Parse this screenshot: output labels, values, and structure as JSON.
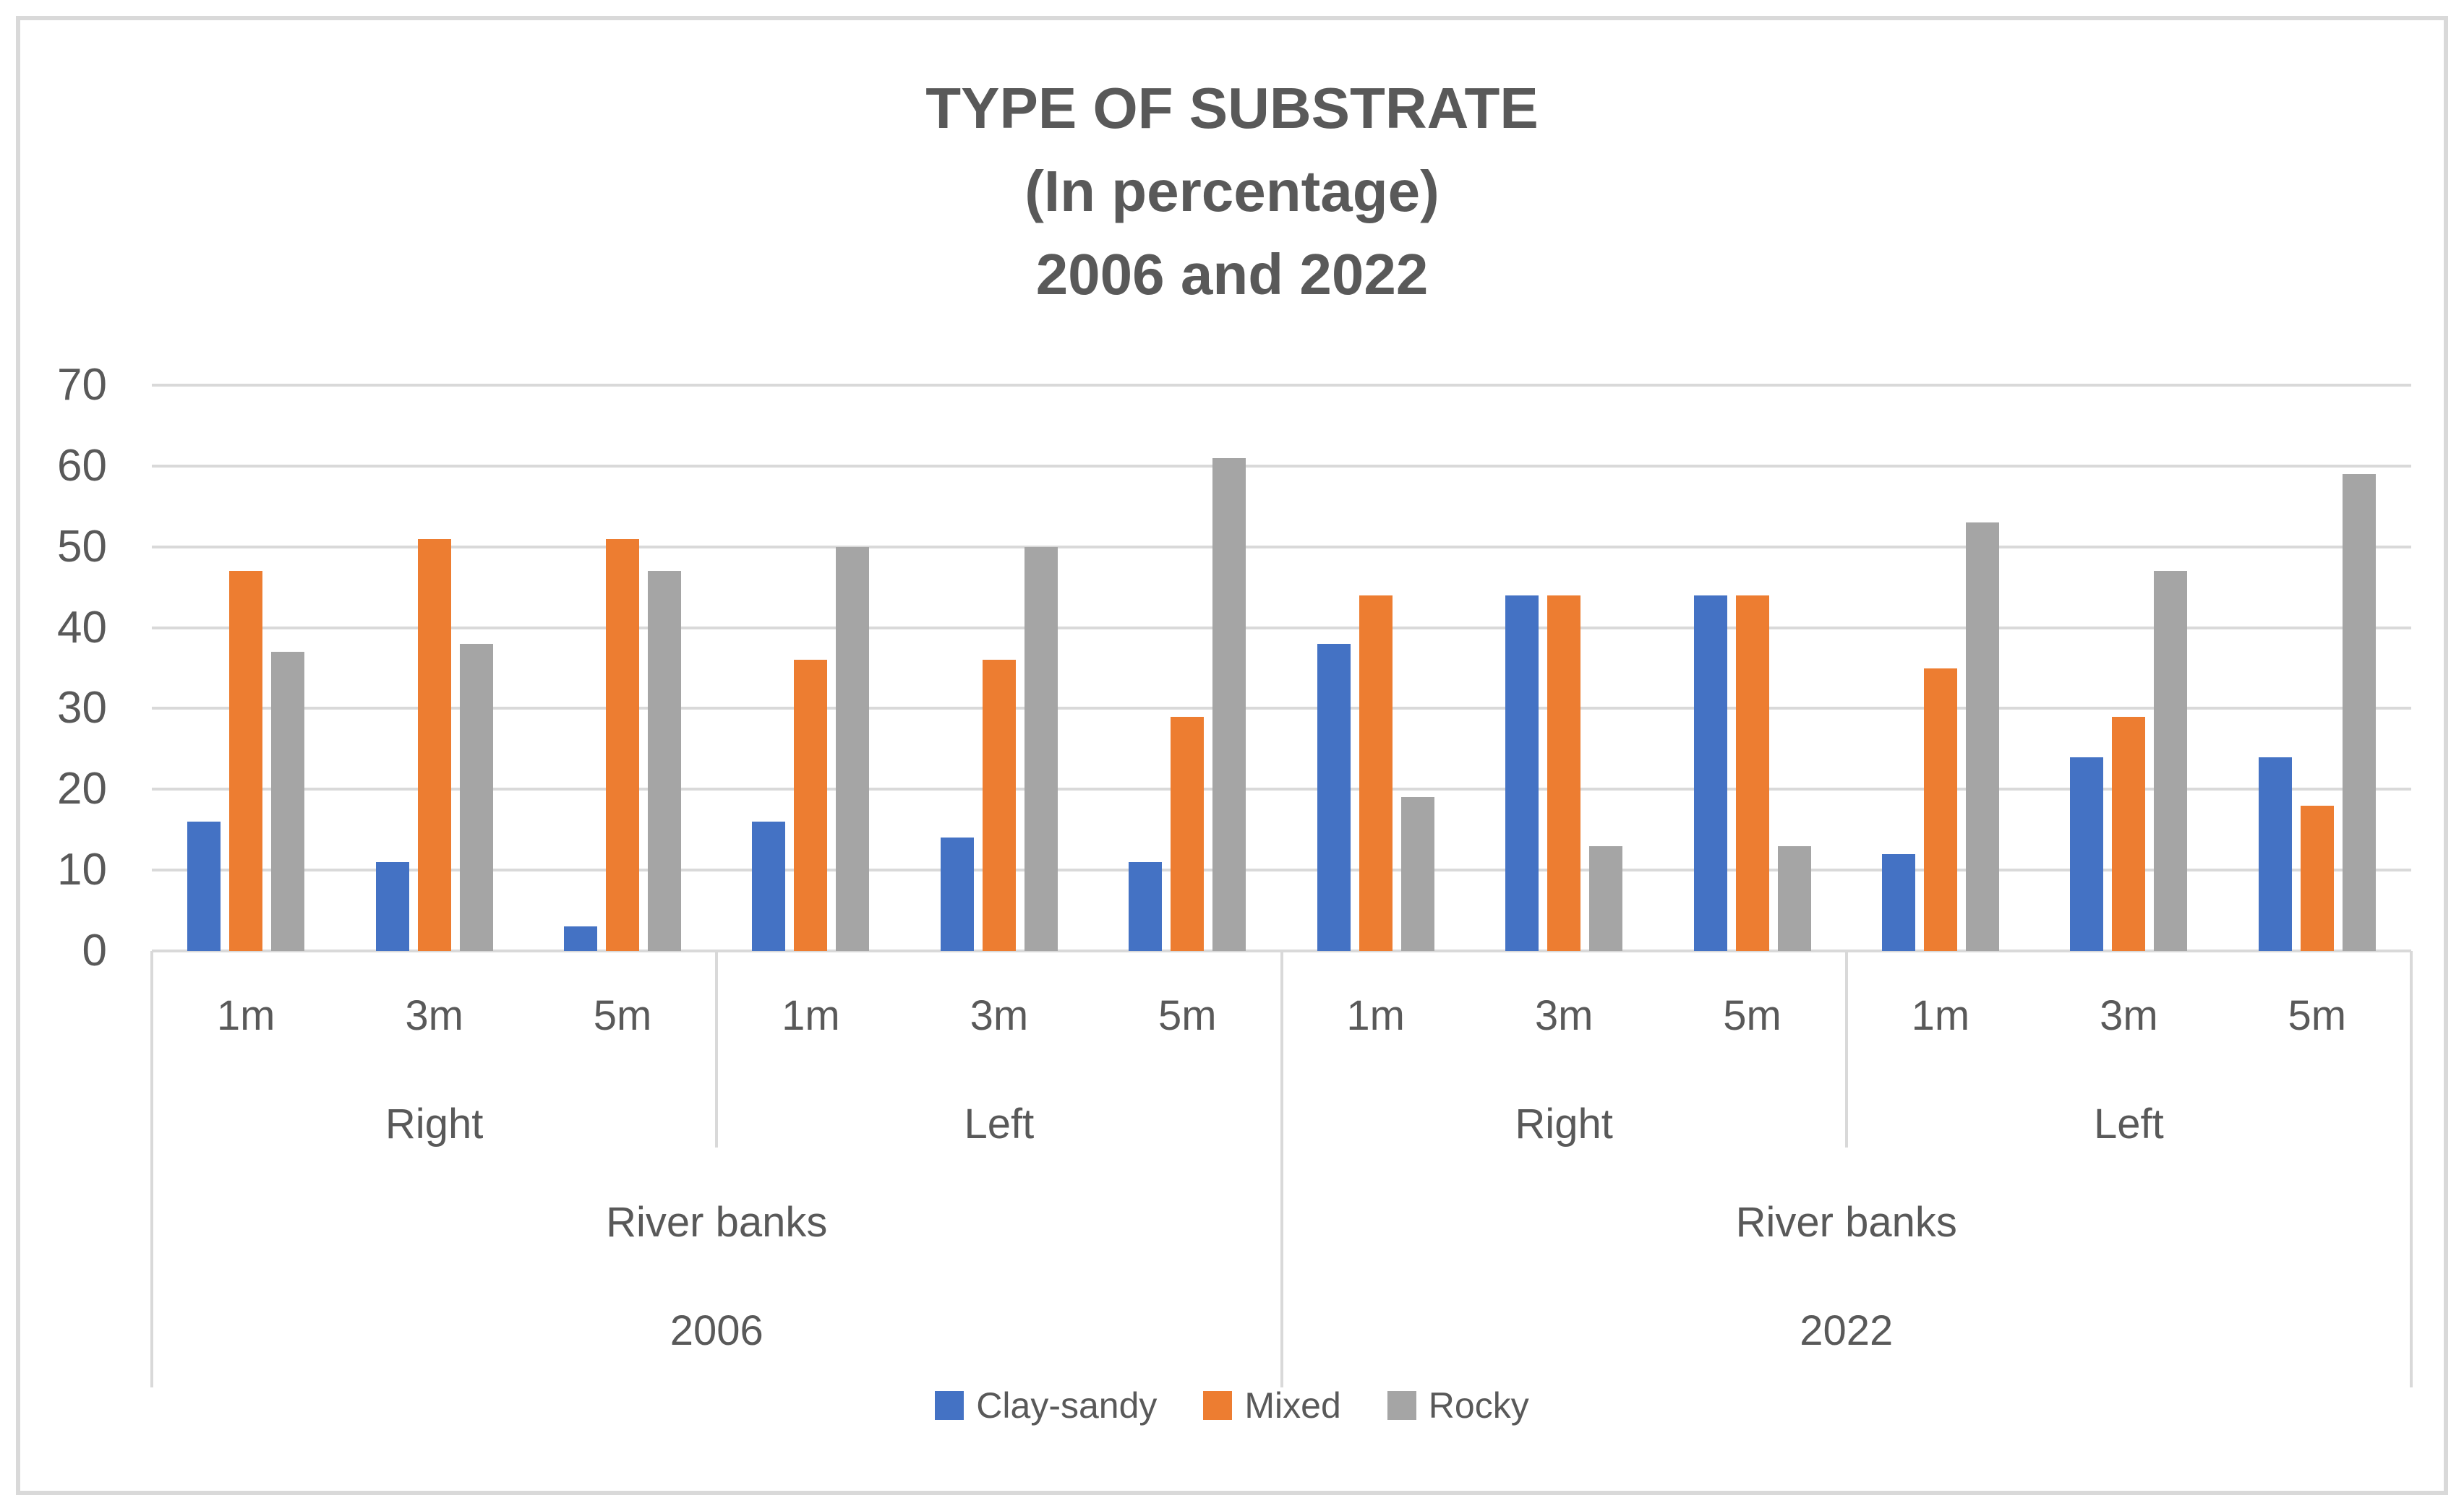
{
  "title": {
    "line1": "TYPE OF SUBSTRATE",
    "line2": "(In percentage)",
    "line3": "2006 and 2022"
  },
  "colors": {
    "clay_sandy": "#4472C4",
    "mixed": "#ED7D31",
    "rocky": "#A5A5A5",
    "gridline": "#D9D9D9",
    "axis_text": "#595959",
    "frame_border": "#D9D9D9"
  },
  "y_axis": {
    "min": 0,
    "max": 70,
    "step": 10,
    "tick_labels": [
      "0",
      "10",
      "20",
      "30",
      "40",
      "50",
      "60",
      "70"
    ]
  },
  "legend": {
    "items": [
      {
        "label": "Clay-sandy",
        "color": "#4472C4"
      },
      {
        "label": "Mixed",
        "color": "#ED7D31"
      },
      {
        "label": "Rocky",
        "color": "#A5A5A5"
      }
    ]
  },
  "chart_data": {
    "type": "bar",
    "title": "TYPE OF SUBSTRATE (In percentage) 2006 and 2022",
    "ylabel": "",
    "xlabel": "",
    "ylim": [
      0,
      70
    ],
    "y_step": 10,
    "grid": true,
    "legend_position": "bottom",
    "categories": [
      "1m",
      "3m",
      "5m",
      "1m",
      "3m",
      "5m",
      "1m",
      "3m",
      "5m",
      "1m",
      "3m",
      "5m"
    ],
    "category_levels": {
      "banks": [
        {
          "label": "Right",
          "span": 3
        },
        {
          "label": "Left",
          "span": 3
        },
        {
          "label": "Right",
          "span": 3
        },
        {
          "label": "Left",
          "span": 3
        }
      ],
      "river_banks": [
        {
          "label": "River banks",
          "span": 6
        },
        {
          "label": "River banks",
          "span": 6
        }
      ],
      "years": [
        {
          "label": "2006",
          "span": 6
        },
        {
          "label": "2022",
          "span": 6
        }
      ]
    },
    "series": [
      {
        "name": "Clay-sandy",
        "color": "#4472C4",
        "values": [
          16,
          11,
          3,
          16,
          14,
          11,
          38,
          44,
          44,
          12,
          24,
          24
        ]
      },
      {
        "name": "Mixed",
        "color": "#ED7D31",
        "values": [
          47,
          51,
          51,
          36,
          36,
          29,
          44,
          44,
          44,
          35,
          29,
          18
        ]
      },
      {
        "name": "Rocky",
        "color": "#A5A5A5",
        "values": [
          37,
          38,
          47,
          50,
          50,
          61,
          19,
          13,
          13,
          53,
          47,
          59
        ]
      }
    ]
  }
}
